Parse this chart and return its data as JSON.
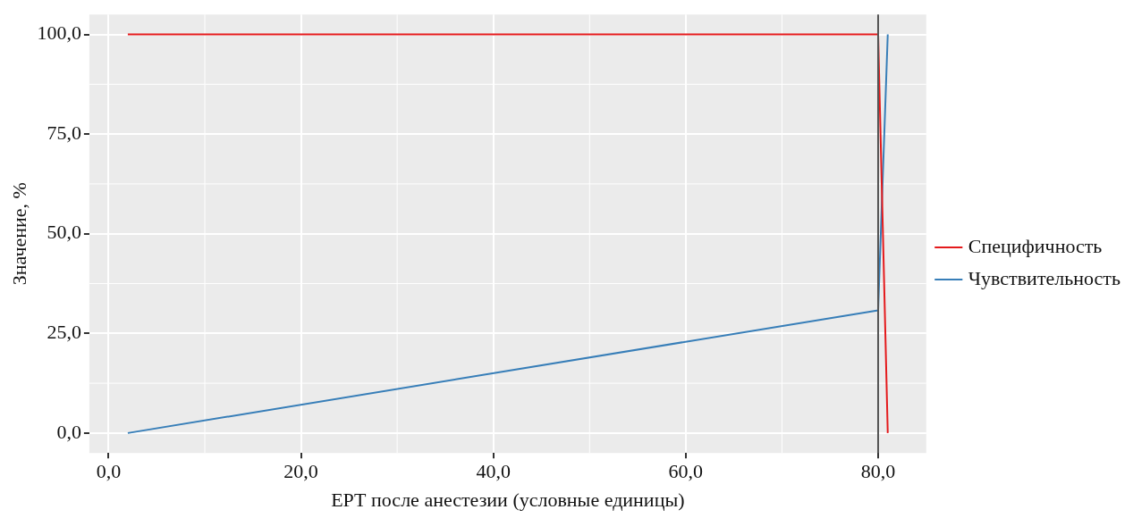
{
  "chart_data": {
    "type": "line",
    "xlabel": "ЕРТ после анестезии (условные единицы)",
    "ylabel": "Значение, %",
    "series": [
      {
        "name": "Специфичность",
        "color": "#e41a1c",
        "x": [
          2,
          80,
          81
        ],
        "values": [
          100,
          100,
          0
        ]
      },
      {
        "name": "Чувствительность",
        "color": "#377eb8",
        "x": [
          2,
          80,
          81
        ],
        "values": [
          0,
          30.8,
          100
        ]
      }
    ],
    "xlim": [
      -2,
      85
    ],
    "ylim": [
      -5,
      105
    ],
    "xticks": [
      {
        "value": 0,
        "label": "0,0"
      },
      {
        "value": 20,
        "label": "20,0"
      },
      {
        "value": 40,
        "label": "40,0"
      },
      {
        "value": 60,
        "label": "60,0"
      },
      {
        "value": 80,
        "label": "80,0"
      }
    ],
    "yticks": [
      {
        "value": 0,
        "label": "0,0"
      },
      {
        "value": 25,
        "label": "25,0"
      },
      {
        "value": 50,
        "label": "50,0"
      },
      {
        "value": 75,
        "label": "75,0"
      },
      {
        "value": 100,
        "label": "100,0"
      }
    ],
    "ref_lines": [
      {
        "axis": "x",
        "value": 80,
        "color": "#555555"
      }
    ],
    "grid": true,
    "legend": "right",
    "marker": "none",
    "line_style": "solid"
  }
}
